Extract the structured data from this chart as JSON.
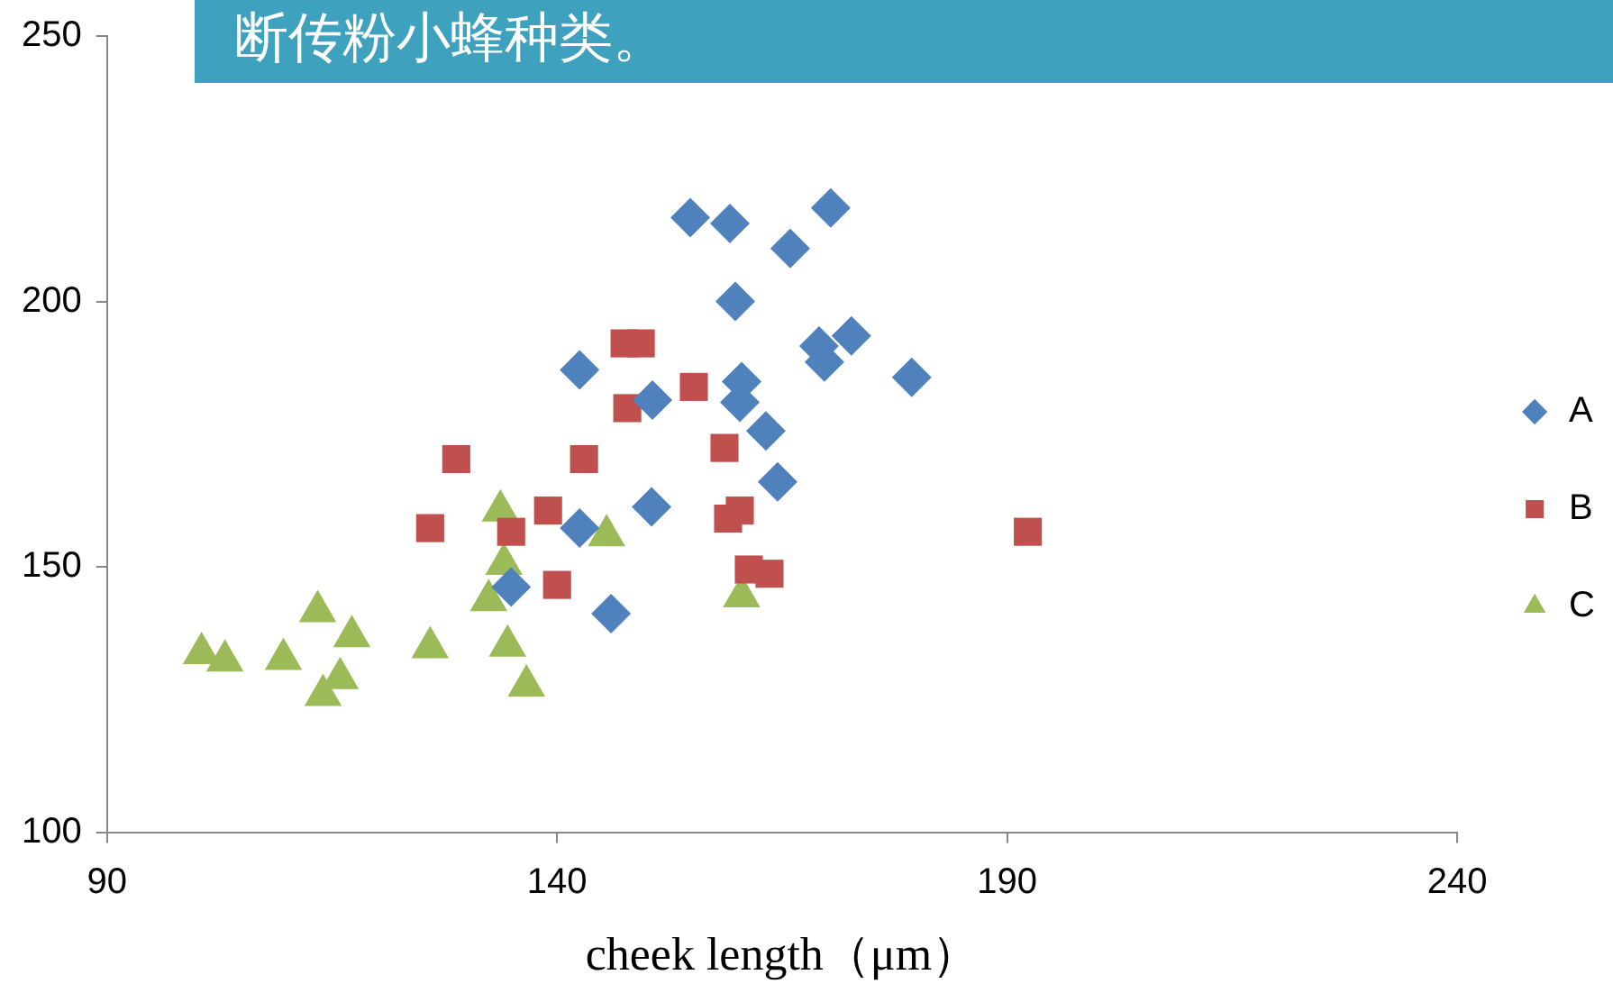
{
  "chart_data": {
    "type": "scatter",
    "title": "断传粉小蜂种类。",
    "xlabel": "cheek length（μm）",
    "xlim": [
      90,
      240
    ],
    "xticks": [
      90,
      140,
      190,
      240
    ],
    "ylim": [
      100,
      250
    ],
    "yticks": [
      100,
      150,
      200,
      250
    ],
    "grid": false,
    "legend": "right",
    "series": [
      {
        "name": "A",
        "color": "#4f81bd",
        "marker": "diamond",
        "x": [
          154.8,
          159.2,
          170.4,
          165.9,
          159.8,
          142.5,
          172.7,
          169.1,
          169.7,
          179.4,
          160.5,
          160.3,
          150.6,
          163.2,
          164.5,
          150.5,
          142.5,
          134.9,
          146.0
        ],
        "values": [
          215.8,
          214.7,
          217.6,
          210.0,
          200.0,
          187.1,
          193.5,
          191.6,
          188.6,
          185.7,
          184.9,
          181.0,
          181.4,
          175.6,
          166.0,
          161.3,
          157.3,
          146.2,
          141.2
        ]
      },
      {
        "name": "B",
        "color": "#c0504d",
        "marker": "square",
        "x": [
          147.5,
          149.3,
          147.8,
          155.2,
          128.8,
          143.0,
          158.6,
          139.0,
          125.9,
          134.9,
          140.0,
          159.0,
          160.3,
          161.3,
          163.6,
          192.3
        ],
        "values": [
          192.1,
          192.1,
          179.9,
          183.9,
          170.3,
          170.3,
          172.4,
          160.6,
          157.3,
          156.6,
          146.6,
          159.1,
          160.6,
          149.5,
          148.7,
          156.6
        ]
      },
      {
        "name": "C",
        "color": "#9bbb59",
        "marker": "triangle",
        "x": [
          133.7,
          145.5,
          134.1,
          132.4,
          134.5,
          136.6,
          125.9,
          113.4,
          117.2,
          109.6,
          100.5,
          103.1,
          115.9,
          114.0,
          160.5
        ],
        "values": [
          160.6,
          155.9,
          150.5,
          143.7,
          135.1,
          127.6,
          134.8,
          141.6,
          136.9,
          132.6,
          133.7,
          132.3,
          129.0,
          125.8,
          144.4
        ]
      }
    ]
  }
}
